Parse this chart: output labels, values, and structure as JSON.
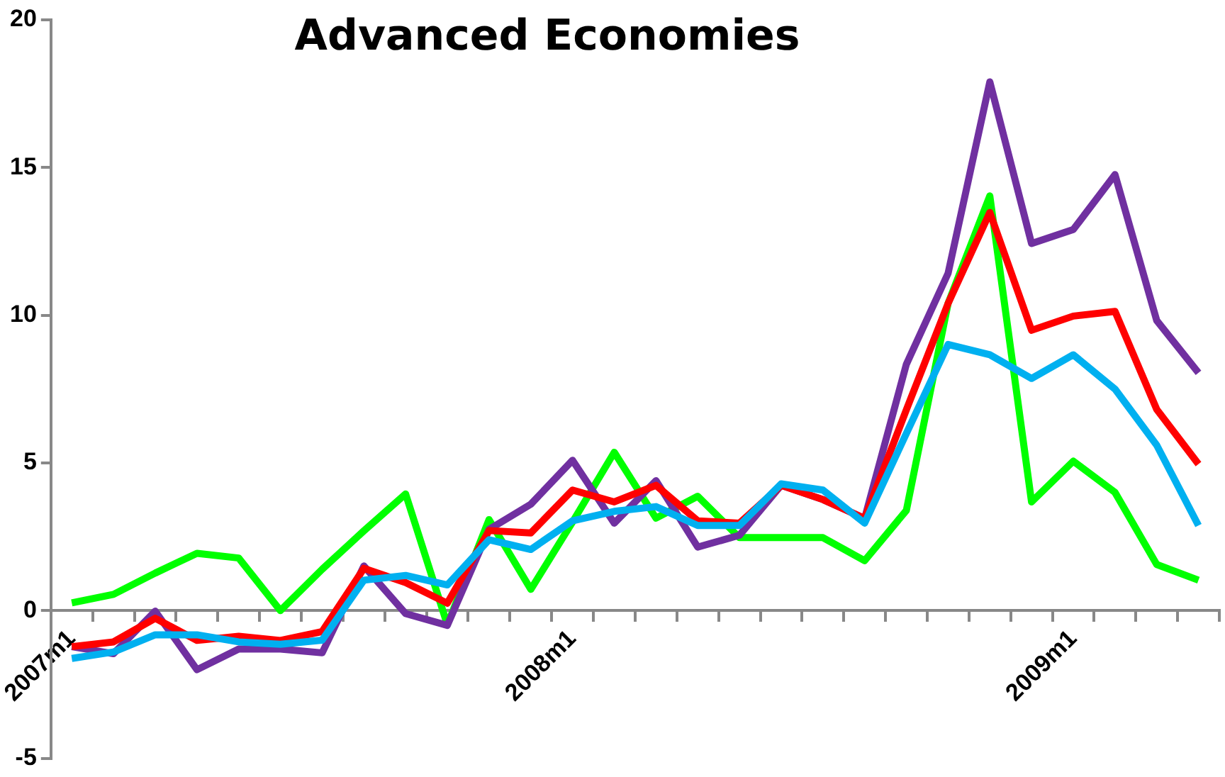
{
  "chart_data": {
    "type": "line",
    "title": "Advanced Economies",
    "categories": [
      "2007m1",
      null,
      null,
      null,
      null,
      null,
      null,
      null,
      null,
      null,
      null,
      null,
      "2008m1",
      null,
      null,
      null,
      null,
      null,
      null,
      null,
      null,
      null,
      null,
      null,
      "2009m1",
      null,
      null,
      null
    ],
    "series": [
      {
        "color": "#00b0f0",
        "values": [
          -1.62,
          -1.4,
          -0.82,
          -0.82,
          -1.06,
          -1.14,
          -1.0,
          1.03,
          1.19,
          0.87,
          2.4,
          2.07,
          3.04,
          3.36,
          3.52,
          2.88,
          2.88,
          4.29,
          4.08,
          2.96,
          6.0,
          9.01,
          8.66,
          7.86,
          8.66,
          7.5,
          5.6,
          2.88
        ]
      },
      {
        "color": "#ff0000",
        "values": [
          -1.22,
          -1.06,
          -0.26,
          -1.01,
          -0.87,
          -1.01,
          -0.71,
          1.43,
          0.95,
          0.25,
          2.71,
          2.63,
          4.08,
          3.68,
          4.24,
          3.04,
          2.96,
          4.24,
          3.76,
          3.12,
          6.8,
          10.4,
          13.48,
          9.49,
          9.97,
          10.13,
          6.81,
          4.96
        ]
      },
      {
        "color": "#7030a0",
        "values": [
          -1.22,
          -1.46,
          -0.02,
          -2.0,
          -1.3,
          -1.3,
          -1.43,
          1.51,
          -0.1,
          -0.5,
          2.75,
          3.6,
          5.09,
          2.96,
          4.4,
          2.15,
          2.55,
          4.24,
          3.76,
          3.12,
          8.34,
          11.42,
          17.9,
          12.43,
          12.9,
          14.76,
          9.82,
          8.05
        ]
      },
      {
        "color": "#00ff00",
        "values": [
          0.26,
          0.55,
          1.27,
          1.94,
          1.78,
          0,
          1.4,
          2.7,
          3.95,
          -0.48,
          3.08,
          0.72,
          3.0,
          5.36,
          3.13,
          3.87,
          2.47,
          2.47,
          2.47,
          1.69,
          3.39,
          10.4,
          14.04,
          3.68,
          5.06,
          4.0,
          1.56,
          1.03
        ]
      }
    ],
    "ylim": [
      -5,
      20
    ],
    "yticks": [
      -5,
      0,
      5,
      10,
      15,
      20
    ],
    "grid": false,
    "legend": false,
    "marker": "none",
    "line_style": "solid"
  }
}
